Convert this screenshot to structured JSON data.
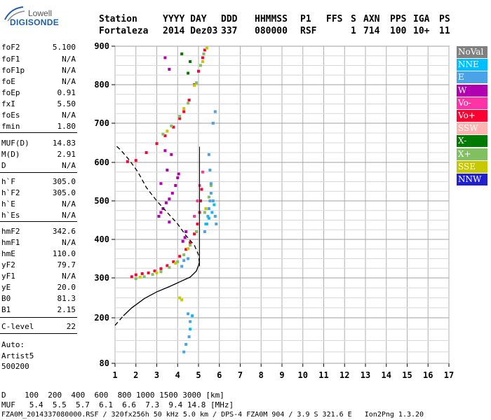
{
  "logo": {
    "top": "Lowell",
    "main": "DIGISONDE"
  },
  "header": {
    "labels": [
      "Station",
      "YYYY DAY",
      "DDD",
      "HHMMSS",
      "P1",
      "FFS",
      "S",
      "AXN",
      "PPS",
      "IGA",
      "PS"
    ],
    "values": [
      "Fortaleza",
      "2014 Dez03",
      "337",
      "080000",
      "RSF",
      "",
      "1",
      "714",
      "100",
      "10+",
      "11"
    ]
  },
  "params": [
    {
      "name": "foF2",
      "value": "5.100"
    },
    {
      "name": "foF1",
      "value": "N/A"
    },
    {
      "name": "foF1p",
      "value": "N/A"
    },
    {
      "name": "foE",
      "value": "N/A"
    },
    {
      "name": "foEp",
      "value": "0.91"
    },
    {
      "name": "fxI",
      "value": "5.50"
    },
    {
      "name": "foEs",
      "value": "N/A"
    },
    {
      "name": "fmin",
      "value": "1.80"
    },
    {
      "name": "MUF(D)",
      "value": "14.83"
    },
    {
      "name": "M(D)",
      "value": "2.91"
    },
    {
      "name": "D",
      "value": "N/A"
    },
    {
      "name": "h`F",
      "value": "305.0"
    },
    {
      "name": "h`F2",
      "value": "305.0"
    },
    {
      "name": "h`E",
      "value": "N/A"
    },
    {
      "name": "h`Es",
      "value": "N/A"
    },
    {
      "name": "hmF2",
      "value": "342.6"
    },
    {
      "name": "hmF1",
      "value": "N/A"
    },
    {
      "name": "hmE",
      "value": "110.0"
    },
    {
      "name": "yF2",
      "value": "79.7"
    },
    {
      "name": "yF1",
      "value": "N/A"
    },
    {
      "name": "yE",
      "value": "20.0"
    },
    {
      "name": "B0",
      "value": "81.3"
    },
    {
      "name": "B1",
      "value": "2.15"
    },
    {
      "name": "C-level",
      "value": "22"
    }
  ],
  "autoscale": {
    "line1": "Auto:",
    "line2": "Artist5",
    "line3": "500200"
  },
  "legend": [
    {
      "label": "NoVal",
      "color": "#808080"
    },
    {
      "label": "NNE",
      "color": "#00bfff"
    },
    {
      "label": "E",
      "color": "#4aa3e6"
    },
    {
      "label": "W",
      "color": "#b000b0"
    },
    {
      "label": "Vo-",
      "color": "#ff33a8"
    },
    {
      "label": "Vo+",
      "color": "#ff0033"
    },
    {
      "label": "SSW",
      "color": "#ffb3b3"
    },
    {
      "label": "X-",
      "color": "#007a00"
    },
    {
      "label": "X+",
      "color": "#80c060"
    },
    {
      "label": "SSE",
      "color": "#c8c800"
    },
    {
      "label": "NNW",
      "color": "#2020d0"
    }
  ],
  "bottom": {
    "d_row": "D    100  200  400  600  800 1000 1500 3000 [km]",
    "muf_row": "MUF   5.4  5.5  5.7  6.1  6.6  7.3  9.4 14.8 [MHz]",
    "footer": "FZA0M_2014337080000.RSF / 320fx256h 50 kHz 5.0 km / DPS-4 FZA0M 904 / 3.9 S 321.6 E   Ion2Png 1.3.20"
  },
  "chart_data": {
    "type": "scatter",
    "title": "",
    "xlabel": "",
    "ylabel": "",
    "xlim": [
      1,
      17
    ],
    "ylim": [
      80,
      900
    ],
    "x_ticks": [
      1,
      2,
      3,
      4,
      5,
      6,
      7,
      8,
      9,
      10,
      11,
      12,
      13,
      14,
      15,
      16,
      17
    ],
    "y_ticks": [
      80,
      200,
      300,
      400,
      500,
      600,
      700,
      800,
      900
    ],
    "grid": true,
    "series": [
      {
        "name": "Vo+",
        "color": "#ff0033",
        "points": [
          [
            1.8,
            303
          ],
          [
            2.0,
            308
          ],
          [
            2.3,
            311
          ],
          [
            2.6,
            313
          ],
          [
            2.9,
            318
          ],
          [
            3.2,
            324
          ],
          [
            3.5,
            332
          ],
          [
            3.8,
            342
          ],
          [
            4.1,
            356
          ],
          [
            4.4,
            374
          ],
          [
            4.6,
            392
          ],
          [
            4.8,
            414
          ],
          [
            4.95,
            440
          ],
          [
            5.05,
            470
          ],
          [
            5.1,
            500
          ],
          [
            5.15,
            530
          ],
          [
            1.6,
            602
          ],
          [
            2.0,
            605
          ],
          [
            2.5,
            625
          ],
          [
            3.0,
            648
          ],
          [
            3.4,
            668
          ],
          [
            3.8,
            690
          ],
          [
            4.1,
            712
          ],
          [
            4.3,
            730
          ],
          [
            4.55,
            760
          ],
          [
            4.8,
            800
          ],
          [
            5.0,
            835
          ],
          [
            5.2,
            870
          ],
          [
            5.3,
            890
          ]
        ]
      },
      {
        "name": "X+",
        "color": "#80c060",
        "points": [
          [
            2.0,
            298
          ],
          [
            2.4,
            303
          ],
          [
            2.8,
            309
          ],
          [
            3.2,
            316
          ],
          [
            3.6,
            327
          ],
          [
            4.0,
            342
          ],
          [
            4.3,
            360
          ],
          [
            4.6,
            385
          ],
          [
            4.9,
            420
          ],
          [
            5.3,
            470
          ],
          [
            5.5,
            510
          ],
          [
            5.6,
            540
          ],
          [
            3.3,
            672
          ],
          [
            3.7,
            693
          ],
          [
            4.1,
            718
          ],
          [
            4.5,
            752
          ],
          [
            4.9,
            805
          ],
          [
            5.1,
            850
          ],
          [
            5.25,
            880
          ]
        ]
      },
      {
        "name": "SSE",
        "color": "#c8c800",
        "points": [
          [
            2.2,
            302
          ],
          [
            3.0,
            313
          ],
          [
            3.9,
            338
          ],
          [
            4.5,
            376
          ],
          [
            5.35,
            480
          ],
          [
            3.5,
            680
          ],
          [
            4.3,
            738
          ],
          [
            4.8,
            798
          ],
          [
            5.2,
            860
          ],
          [
            5.4,
            895
          ],
          [
            4.1,
            250
          ],
          [
            4.2,
            245
          ]
        ]
      },
      {
        "name": "E",
        "color": "#4aa3e6",
        "points": [
          [
            5.3,
            420
          ],
          [
            5.4,
            440
          ],
          [
            5.45,
            460
          ],
          [
            5.5,
            480
          ],
          [
            5.55,
            500
          ],
          [
            5.6,
            520
          ],
          [
            5.6,
            545
          ],
          [
            5.55,
            580
          ],
          [
            5.5,
            620
          ],
          [
            5.7,
            700
          ],
          [
            5.8,
            730
          ],
          [
            4.2,
            330
          ],
          [
            4.3,
            345
          ],
          [
            4.5,
            350
          ],
          [
            4.5,
            210
          ],
          [
            4.6,
            190
          ],
          [
            4.55,
            150
          ],
          [
            4.4,
            130
          ],
          [
            4.3,
            110
          ],
          [
            5.8,
            460
          ],
          [
            5.85,
            440
          ],
          [
            5.7,
            500
          ]
        ]
      },
      {
        "name": "NNE",
        "color": "#00bfff",
        "points": [
          [
            5.35,
            440
          ],
          [
            5.5,
            455
          ],
          [
            5.65,
            470
          ],
          [
            5.75,
            490
          ],
          [
            4.6,
            170
          ],
          [
            4.7,
            205
          ]
        ]
      },
      {
        "name": "W",
        "color": "#b000b0",
        "points": [
          [
            3.1,
            460
          ],
          [
            3.2,
            470
          ],
          [
            3.3,
            480
          ],
          [
            3.45,
            495
          ],
          [
            3.6,
            505
          ],
          [
            3.75,
            520
          ],
          [
            3.9,
            540
          ],
          [
            4.0,
            560
          ],
          [
            3.5,
            580
          ],
          [
            3.2,
            545
          ],
          [
            3.4,
            630
          ],
          [
            3.7,
            620
          ],
          [
            3.6,
            840
          ],
          [
            3.4,
            870
          ],
          [
            4.25,
            395
          ],
          [
            4.35,
            405
          ],
          [
            4.4,
            420
          ],
          [
            3.6,
            445
          ],
          [
            4.05,
            570
          ]
        ]
      },
      {
        "name": "Vo-",
        "color": "#ff33a8",
        "points": [
          [
            4.8,
            460
          ],
          [
            4.95,
            500
          ],
          [
            5.05,
            540
          ],
          [
            5.2,
            575
          ]
        ]
      },
      {
        "name": "X-",
        "color": "#007a00",
        "points": [
          [
            4.5,
            830
          ],
          [
            4.6,
            860
          ],
          [
            4.2,
            880
          ]
        ]
      },
      {
        "name": "profile",
        "color": "#000000",
        "dashed_lower": true,
        "points": [
          [
            1.0,
            180
          ],
          [
            1.4,
            205
          ],
          [
            1.8,
            225
          ],
          [
            2.4,
            248
          ],
          [
            3.0,
            265
          ],
          [
            3.6,
            278
          ],
          [
            4.1,
            290
          ],
          [
            4.6,
            302
          ],
          [
            4.9,
            318
          ],
          [
            5.05,
            340
          ],
          [
            5.0,
            360
          ],
          [
            4.8,
            385
          ],
          [
            4.4,
            410
          ],
          [
            4.0,
            440
          ],
          [
            3.5,
            470
          ],
          [
            3.0,
            500
          ],
          [
            2.5,
            535
          ],
          [
            2.1,
            575
          ],
          [
            1.7,
            605
          ],
          [
            1.3,
            630
          ],
          [
            1.0,
            645
          ]
        ]
      }
    ]
  }
}
